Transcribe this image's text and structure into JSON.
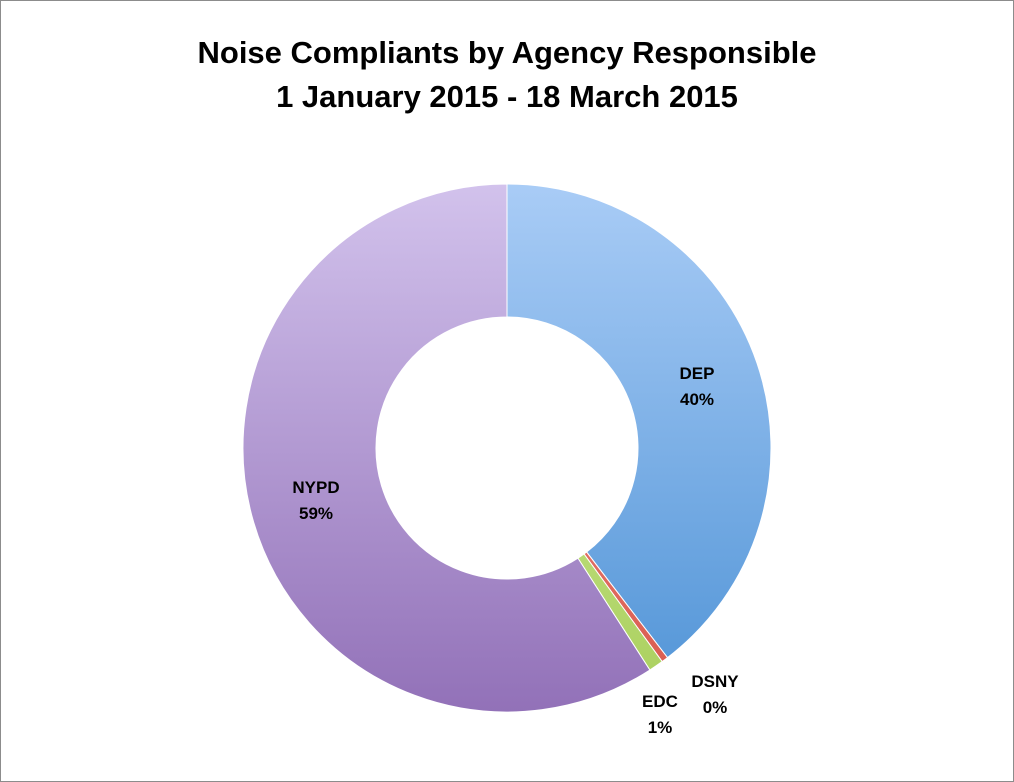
{
  "chart_data": {
    "type": "pie",
    "variant": "donut",
    "title": "Noise Compliants by Agency Responsible",
    "subtitle": "1 January 2015 - 18 March 2015",
    "legend": "none",
    "slices": [
      {
        "name": "DEP",
        "value": 39.6,
        "label": "40%",
        "color_top": "#a9ccf6",
        "color_bottom": "#4f93d6"
      },
      {
        "name": "DSNY",
        "value": 0.4,
        "label": "0%",
        "color_top": "#f2a09a",
        "color_bottom": "#d8574a"
      },
      {
        "name": "EDC",
        "value": 0.9,
        "label": "1%",
        "color_top": "#d8f0a8",
        "color_bottom": "#a9cf5c"
      },
      {
        "name": "NYPD",
        "value": 59.1,
        "label": "59%",
        "color_top": "#d2c2ec",
        "color_bottom": "#9271b8"
      }
    ]
  }
}
